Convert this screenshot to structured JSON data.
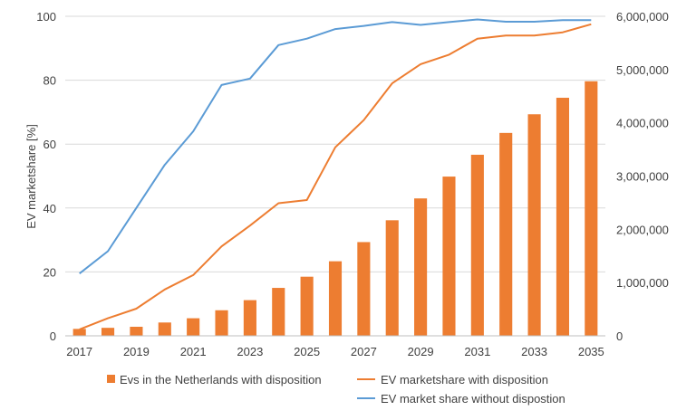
{
  "chart_data": {
    "type": "bar",
    "x": [
      2017,
      2018,
      2019,
      2020,
      2021,
      2022,
      2023,
      2024,
      2025,
      2026,
      2027,
      2028,
      2029,
      2030,
      2031,
      2032,
      2033,
      2034,
      2035
    ],
    "x_tick_labels": [
      "2017",
      "2019",
      "2021",
      "2023",
      "2025",
      "2027",
      "2029",
      "2031",
      "2033",
      "2035"
    ],
    "ylabel": "EV marketshare [%]",
    "ylim": [
      0,
      100
    ],
    "y_ticks": [
      0,
      20,
      40,
      60,
      80,
      100
    ],
    "y_tick_labels": [
      "0",
      "20",
      "40",
      "60",
      "80",
      "100"
    ],
    "y2lim": [
      0,
      6000000
    ],
    "y2_ticks": [
      0,
      1000000,
      2000000,
      3000000,
      4000000,
      5000000,
      6000000
    ],
    "y2_tick_labels": [
      "0",
      "1,000,000",
      "2,000,000",
      "3,000,000",
      "4,000,000",
      "5,000,000",
      "6,000,000"
    ],
    "grid": "horizontal",
    "legend_position": "bottom",
    "series": [
      {
        "name": "Evs in the Netherlands with disposition",
        "type": "bar",
        "axis": "right",
        "color": "#ED7D31",
        "values": [
          130000,
          150000,
          170000,
          250000,
          330000,
          480000,
          670000,
          900000,
          1110000,
          1400000,
          1760000,
          2170000,
          2580000,
          2990000,
          3400000,
          3810000,
          4160000,
          4470000,
          4780000
        ]
      },
      {
        "name": "EV marketshare with disposition",
        "type": "line",
        "axis": "left",
        "color": "#ED7D31",
        "values": [
          2,
          5.5,
          8.5,
          14.5,
          19,
          28,
          34.5,
          41.5,
          42.5,
          59,
          67.5,
          79,
          85,
          88,
          93,
          94,
          94,
          95,
          97.5
        ]
      },
      {
        "name": "EV market share without dispostion",
        "type": "line",
        "axis": "left",
        "color": "#5B9BD5",
        "values": [
          19.5,
          26.5,
          40,
          53.5,
          64,
          78.5,
          80.5,
          91,
          93,
          96,
          97,
          98.2,
          97.3,
          98.2,
          99,
          98.3,
          98.3,
          98.8,
          98.8
        ]
      }
    ]
  }
}
